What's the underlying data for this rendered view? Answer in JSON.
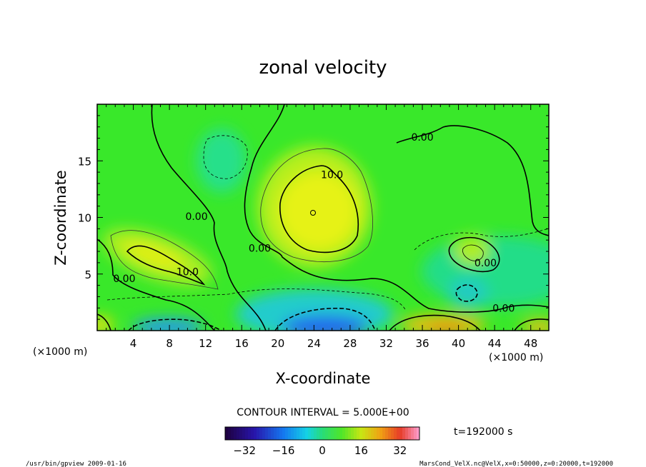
{
  "chart_data": {
    "type": "heatmap",
    "title": "zonal velocity",
    "xlabel": "X-coordinate",
    "ylabel": "Z-coordinate",
    "x_unit": "(×1000 m)",
    "z_unit": "(×1000 m)",
    "xlim": [
      0,
      50
    ],
    "ylim": [
      0,
      20
    ],
    "x_ticks": [
      4,
      8,
      12,
      16,
      20,
      24,
      28,
      32,
      36,
      40,
      44,
      48
    ],
    "y_ticks": [
      5,
      10,
      15
    ],
    "contour_interval_text": "CONTOUR INTERVAL = 5.000E+00",
    "contour_labels": [
      {
        "text": "0.00",
        "x": 11,
        "y": 10.1
      },
      {
        "text": "0.00",
        "x": 18,
        "y": 7.3
      },
      {
        "text": "0.00",
        "x": 3,
        "y": 4.6
      },
      {
        "text": "10.0",
        "x": 26,
        "y": 13.8
      },
      {
        "text": "10.0",
        "x": 10,
        "y": 5.2
      },
      {
        "text": "0.00",
        "x": 36,
        "y": 17.1
      },
      {
        "text": "0.00",
        "x": 43,
        "y": 6.0
      },
      {
        "text": "0.00",
        "x": 45,
        "y": 2.0
      }
    ],
    "colorbar": {
      "range": [
        -40,
        40
      ],
      "tick_values": [
        -32,
        -16,
        0,
        16,
        32
      ],
      "tick_labels": [
        "−32",
        "−16",
        "0",
        "16",
        "32"
      ]
    },
    "colors": {
      "background_field": "#33ee22",
      "min_color": "#220066",
      "max_color": "#ff99cc"
    },
    "time_label": "t=192000 s"
  },
  "footer": {
    "left": "/usr/bin/gpview   2009-01-16",
    "right": "MarsCond_VelX.nc@VelX,x=0:50000,z=0:20000,t=192000"
  }
}
